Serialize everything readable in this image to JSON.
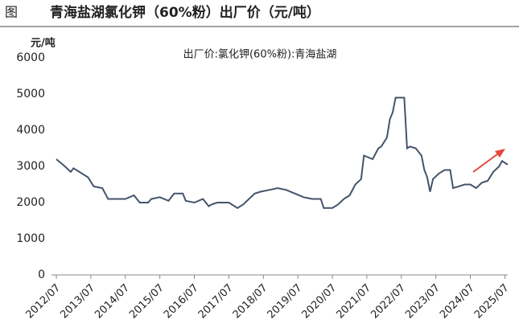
{
  "figure_label": "图",
  "chart_data": {
    "type": "line",
    "title": "青海盐湖氯化钾（60%粉）出厂价（元/吨）",
    "y_label": "元/吨",
    "series": [
      {
        "name": "出厂价:氯化钾(60%粉):青海盐湖",
        "color": "#44546a",
        "x": [
          "2012/07",
          "2012/10",
          "2012/12",
          "2013/01",
          "2013/06",
          "2013/08",
          "2013/11",
          "2014/01",
          "2014/07",
          "2014/10",
          "2014/12",
          "2015/03",
          "2015/04",
          "2015/07",
          "2015/10",
          "2015/12",
          "2016/03",
          "2016/04",
          "2016/07",
          "2016/10",
          "2016/12",
          "2017/01",
          "2017/03",
          "2017/07",
          "2017/10",
          "2017/12",
          "2018/02",
          "2018/04",
          "2018/06",
          "2018/09",
          "2018/12",
          "2019/03",
          "2019/06",
          "2019/09",
          "2019/12",
          "2020/03",
          "2020/04",
          "2020/07",
          "2020/09",
          "2020/11",
          "2021/01",
          "2021/03",
          "2021/05",
          "2021/06",
          "2021/09",
          "2021/11",
          "2021/12",
          "2022/02",
          "2022/03",
          "2022/04",
          "2022/05",
          "2022/08",
          "2022/09",
          "2022/10",
          "2022/12",
          "2023/02",
          "2023/03",
          "2023/04",
          "2023/05",
          "2023/06",
          "2023/08",
          "2023/10",
          "2023/12",
          "2024/01",
          "2024/03",
          "2024/05",
          "2024/07",
          "2024/09",
          "2024/11",
          "2025/01",
          "2025/03",
          "2025/05",
          "2025/06",
          "2025/07",
          "2025/08"
        ],
        "values": [
          3200,
          3000,
          2850,
          2950,
          2700,
          2450,
          2400,
          2100,
          2100,
          2200,
          2000,
          2000,
          2100,
          2150,
          2050,
          2250,
          2250,
          2050,
          2000,
          2100,
          1900,
          1950,
          2000,
          2000,
          1850,
          1950,
          2100,
          2250,
          2300,
          2350,
          2400,
          2350,
          2250,
          2150,
          2100,
          2100,
          1850,
          1850,
          1950,
          2100,
          2200,
          2500,
          2650,
          3300,
          3200,
          3500,
          3550,
          3800,
          4300,
          4500,
          4900,
          4900,
          3500,
          3550,
          3500,
          3300,
          2900,
          2700,
          2300,
          2650,
          2800,
          2900,
          2900,
          2400,
          2450,
          2500,
          2500,
          2400,
          2550,
          2600,
          2850,
          3000,
          3150,
          3100,
          3050
        ]
      }
    ],
    "xlim": [
      "2012/07",
      "2025/08"
    ],
    "xticks": [
      "2012/07",
      "2013/07",
      "2014/07",
      "2015/07",
      "2016/07",
      "2017/07",
      "2018/07",
      "2019/07",
      "2020/07",
      "2021/07",
      "2022/07",
      "2023/07",
      "2024/07",
      "2025/07"
    ],
    "ylim": [
      0,
      6000
    ],
    "yticks": [
      0,
      1000,
      2000,
      3000,
      4000,
      5000,
      6000
    ],
    "legend": "top"
  }
}
